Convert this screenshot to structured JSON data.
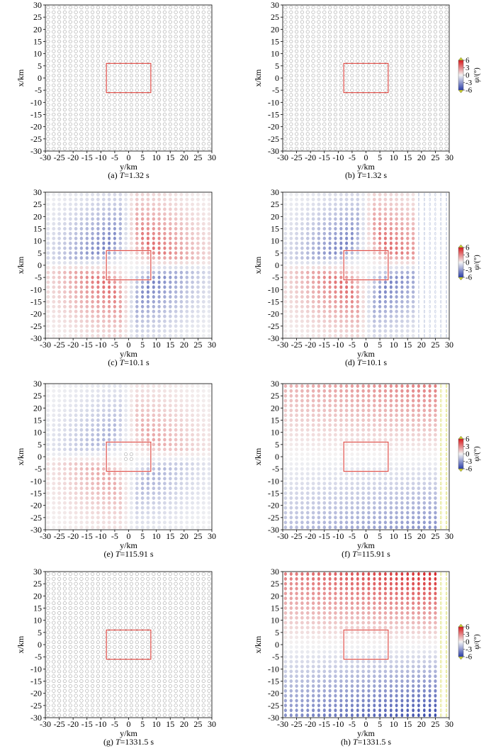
{
  "figure": {
    "colors": {
      "axis": "#000000",
      "grid_circle": "#8c8c8c",
      "rectangle": "#e0504a",
      "positive": "#d7191c",
      "negative": "#2b3ea8",
      "neutral": "#f2f2f2",
      "extend": "#cdd12a"
    }
  },
  "colorbar": {
    "label_symbol": "ψ",
    "label_unit": "/(°)",
    "ticks": [
      6,
      3,
      0,
      -3,
      -6
    ]
  },
  "chart_data": [
    {
      "id": "a",
      "type": "scatter",
      "caption_prefix": "(a) ",
      "caption_var": "T",
      "caption_value": "=1.32 s",
      "xlabel": "y/km",
      "ylabel": "x/km",
      "xlim": [
        -30,
        30
      ],
      "ylim": [
        -30,
        30
      ],
      "xticks": [
        -30,
        -25,
        -20,
        -15,
        -10,
        -5,
        0,
        5,
        10,
        15,
        20,
        25,
        30
      ],
      "yticks": [
        30,
        25,
        20,
        15,
        10,
        5,
        0,
        -5,
        -10,
        -15,
        -20,
        -25,
        -30
      ],
      "grid_step_km": 2,
      "source_rect": {
        "y": [
          -8,
          8
        ],
        "x": [
          -6,
          6
        ]
      },
      "field": "none",
      "amplitude_deg": 0,
      "colorbar": false
    },
    {
      "id": "b",
      "type": "scatter",
      "caption_prefix": "(b) ",
      "caption_var": "T",
      "caption_value": "=1.32 s",
      "xlabel": "y/km",
      "ylabel": "x/km",
      "xlim": [
        -30,
        30
      ],
      "ylim": [
        -30,
        30
      ],
      "xticks": [
        -30,
        -25,
        -20,
        -15,
        -10,
        -5,
        0,
        5,
        10,
        15,
        20,
        25,
        30
      ],
      "yticks": [
        30,
        25,
        20,
        15,
        10,
        5,
        0,
        -5,
        -10,
        -15,
        -20,
        -25,
        -30
      ],
      "grid_step_km": 2,
      "source_rect": {
        "y": [
          -8,
          8
        ],
        "x": [
          -6,
          6
        ]
      },
      "field": "none",
      "amplitude_deg": 0,
      "colorbar": true
    },
    {
      "id": "c",
      "type": "scatter",
      "caption_prefix": "(c) ",
      "caption_var": "T",
      "caption_value": "=10.1 s",
      "xlabel": "y/km",
      "ylabel": "x/km",
      "xlim": [
        -30,
        30
      ],
      "ylim": [
        -30,
        30
      ],
      "xticks": [
        -30,
        -25,
        -20,
        -15,
        -10,
        -5,
        0,
        5,
        10,
        15,
        20,
        25,
        30
      ],
      "yticks": [
        30,
        25,
        20,
        15,
        10,
        5,
        0,
        -5,
        -10,
        -15,
        -20,
        -25,
        -30
      ],
      "grid_step_km": 2,
      "source_rect": {
        "y": [
          -8,
          8
        ],
        "x": [
          -6,
          6
        ]
      },
      "field": "quadrant",
      "amplitude_deg": 1.2,
      "colorbar": false
    },
    {
      "id": "d",
      "type": "scatter",
      "caption_prefix": "(d) ",
      "caption_var": "T",
      "caption_value": "=10.1 s",
      "xlabel": "y/km",
      "ylabel": "x/km",
      "xlim": [
        -30,
        30
      ],
      "ylim": [
        -30,
        30
      ],
      "xticks": [
        -30,
        -25,
        -20,
        -15,
        -10,
        -5,
        0,
        5,
        10,
        15,
        20,
        25,
        30
      ],
      "yticks": [
        30,
        25,
        20,
        15,
        10,
        5,
        0,
        -5,
        -10,
        -15,
        -20,
        -25,
        -30
      ],
      "grid_step_km": 2,
      "source_rect": {
        "y": [
          -8,
          8
        ],
        "x": [
          -6,
          6
        ]
      },
      "field": "quadrant_edge",
      "amplitude_deg": 1.2,
      "colorbar": true
    },
    {
      "id": "e",
      "type": "scatter",
      "caption_prefix": "(e) ",
      "caption_var": "T",
      "caption_value": "=115.91 s",
      "xlabel": "y/km",
      "ylabel": "x/km",
      "xlim": [
        -30,
        30
      ],
      "ylim": [
        -30,
        30
      ],
      "xticks": [
        -30,
        -25,
        -20,
        -15,
        -10,
        -5,
        0,
        5,
        10,
        15,
        20,
        25,
        30
      ],
      "yticks": [
        30,
        25,
        20,
        15,
        10,
        5,
        0,
        -5,
        -10,
        -15,
        -20,
        -25,
        -30
      ],
      "grid_step_km": 2,
      "source_rect": {
        "y": [
          -8,
          8
        ],
        "x": [
          -6,
          6
        ]
      },
      "field": "quadrant",
      "amplitude_deg": 0.7,
      "colorbar": false
    },
    {
      "id": "f",
      "type": "scatter",
      "caption_prefix": "(f) ",
      "caption_var": "T",
      "caption_value": "=115.91 s",
      "xlabel": "y/km",
      "ylabel": "x/km",
      "xlim": [
        -30,
        30
      ],
      "ylim": [
        -30,
        30
      ],
      "xticks": [
        -30,
        -25,
        -20,
        -15,
        -10,
        -5,
        0,
        5,
        10,
        15,
        20,
        25,
        30
      ],
      "yticks": [
        30,
        25,
        20,
        15,
        10,
        5,
        0,
        -5,
        -10,
        -15,
        -20,
        -25,
        -30
      ],
      "grid_step_km": 2,
      "source_rect": {
        "y": [
          -8,
          8
        ],
        "x": [
          -6,
          6
        ]
      },
      "field": "gradient",
      "amplitude_deg": 3.5,
      "colorbar": true
    },
    {
      "id": "g",
      "type": "scatter",
      "caption_prefix": "(g) ",
      "caption_var": "T",
      "caption_value": "=1331.5 s",
      "xlabel": "y/km",
      "ylabel": "x/km",
      "xlim": [
        -30,
        30
      ],
      "ylim": [
        -30,
        30
      ],
      "xticks": [
        -30,
        -25,
        -20,
        -15,
        -10,
        -5,
        0,
        5,
        10,
        15,
        20,
        25,
        30
      ],
      "yticks": [
        30,
        25,
        20,
        15,
        10,
        5,
        0,
        -5,
        -10,
        -15,
        -20,
        -25,
        -30
      ],
      "grid_step_km": 2,
      "source_rect": {
        "y": [
          -8,
          8
        ],
        "x": [
          -6,
          6
        ]
      },
      "field": "none",
      "amplitude_deg": 0,
      "colorbar": false
    },
    {
      "id": "h",
      "type": "scatter",
      "caption_prefix": "(h) ",
      "caption_var": "T",
      "caption_value": "=1331.5 s",
      "xlabel": "y/km",
      "ylabel": "x/km",
      "xlim": [
        -30,
        30
      ],
      "ylim": [
        -30,
        30
      ],
      "xticks": [
        -30,
        -25,
        -20,
        -15,
        -10,
        -5,
        0,
        5,
        10,
        15,
        20,
        25,
        30
      ],
      "yticks": [
        30,
        25,
        20,
        15,
        10,
        5,
        0,
        -5,
        -10,
        -15,
        -20,
        -25,
        -30
      ],
      "grid_step_km": 2,
      "source_rect": {
        "y": [
          -8,
          8
        ],
        "x": [
          -6,
          6
        ]
      },
      "field": "gradient_strong",
      "amplitude_deg": 6,
      "colorbar": true
    }
  ]
}
